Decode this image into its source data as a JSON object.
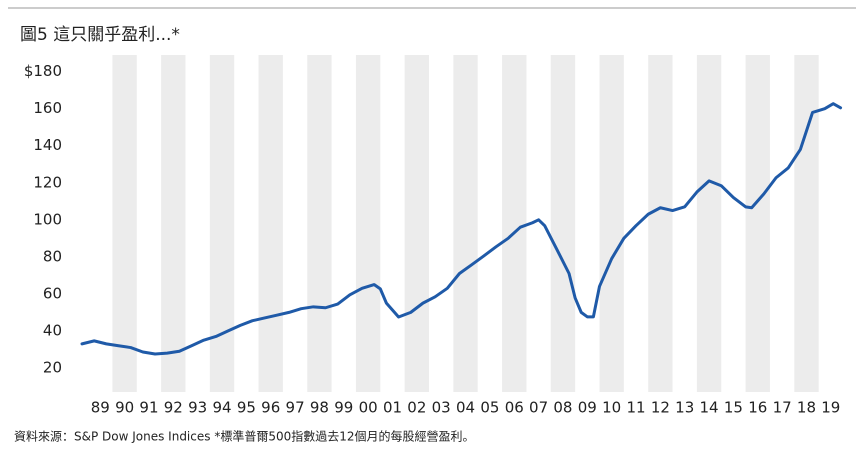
{
  "chart_data": {
    "type": "line",
    "title": "圖5  這只關乎盈利...*",
    "footnote": "資料來源：S&P Dow Jones Indices *標準普爾500指數過去12個月的每股經營盈利。",
    "xlim": [
      1988.75,
      2020
    ],
    "ylim": [
      7,
      189
    ],
    "yticks": [
      20,
      40,
      60,
      80,
      100,
      120,
      140,
      160,
      {
        "value": 180,
        "label": "$180"
      }
    ],
    "xticks": [
      {
        "value": 1989.5,
        "label": "89"
      },
      {
        "value": 1990.5,
        "label": "90"
      },
      {
        "value": 1991.5,
        "label": "91"
      },
      {
        "value": 1992.5,
        "label": "92"
      },
      {
        "value": 1993.5,
        "label": "93"
      },
      {
        "value": 1994.5,
        "label": "94"
      },
      {
        "value": 1995.5,
        "label": "95"
      },
      {
        "value": 1996.5,
        "label": "96"
      },
      {
        "value": 1997.5,
        "label": "97"
      },
      {
        "value": 1998.5,
        "label": "98"
      },
      {
        "value": 1999.5,
        "label": "99"
      },
      {
        "value": 2000.5,
        "label": "00"
      },
      {
        "value": 2001.5,
        "label": "01"
      },
      {
        "value": 2002.5,
        "label": "02"
      },
      {
        "value": 2003.5,
        "label": "03"
      },
      {
        "value": 2004.5,
        "label": "04"
      },
      {
        "value": 2005.5,
        "label": "05"
      },
      {
        "value": 2006.5,
        "label": "06"
      },
      {
        "value": 2007.5,
        "label": "07"
      },
      {
        "value": 2008.5,
        "label": "08"
      },
      {
        "value": 2009.5,
        "label": "09"
      },
      {
        "value": 2010.5,
        "label": "10"
      },
      {
        "value": 2011.5,
        "label": "11"
      },
      {
        "value": 2012.5,
        "label": "12"
      },
      {
        "value": 2013.5,
        "label": "13"
      },
      {
        "value": 2014.5,
        "label": "14"
      },
      {
        "value": 2015.5,
        "label": "15"
      },
      {
        "value": 2016.5,
        "label": "16"
      },
      {
        "value": 2017.5,
        "label": "17"
      },
      {
        "value": 2018.5,
        "label": "18"
      },
      {
        "value": 2019.5,
        "label": "19"
      }
    ],
    "x": [
      1988.75,
      1989.25,
      1989.75,
      1990.25,
      1990.75,
      1991.25,
      1991.75,
      1992.25,
      1992.75,
      1993.25,
      1993.75,
      1994.25,
      1994.75,
      1995.25,
      1995.75,
      1996.25,
      1996.75,
      1997.25,
      1997.75,
      1998.25,
      1998.75,
      1999.25,
      1999.75,
      2000.25,
      2000.75,
      2001.0,
      2001.25,
      2001.75,
      2002.25,
      2002.75,
      2003.25,
      2003.75,
      2004.25,
      2004.75,
      2005.25,
      2005.75,
      2006.25,
      2006.75,
      2007.25,
      2007.5,
      2007.75,
      2008.25,
      2008.75,
      2009.0,
      2009.25,
      2009.5,
      2009.75,
      2010.0,
      2010.5,
      2011.0,
      2011.5,
      2012.0,
      2012.5,
      2013.0,
      2013.5,
      2014.0,
      2014.5,
      2015.0,
      2015.5,
      2016.0,
      2016.25,
      2016.75,
      2017.25,
      2017.75,
      2018.25,
      2018.75,
      2019.25,
      2019.6,
      2019.9
    ],
    "series": [
      {
        "color": "#1f5aa8",
        "values": [
          33,
          34.6,
          33,
          32,
          31,
          28.6,
          27.5,
          28,
          29,
          32,
          35,
          37,
          40,
          43,
          45.5,
          47,
          48.5,
          50,
          52,
          53,
          52.5,
          54.5,
          59.5,
          63,
          65,
          62.7,
          55,
          47.5,
          50,
          55,
          58.4,
          63,
          71,
          75.7,
          80.5,
          85.4,
          90,
          96,
          98.4,
          100,
          96.8,
          84,
          71,
          57.8,
          50,
          47.6,
          47.6,
          64,
          79,
          90,
          96.8,
          103,
          106.5,
          105,
          107,
          115,
          121,
          118.4,
          112,
          107,
          106.5,
          114,
          122.7,
          128,
          138,
          158,
          160,
          162.7,
          160.5
        ]
      }
    ]
  }
}
